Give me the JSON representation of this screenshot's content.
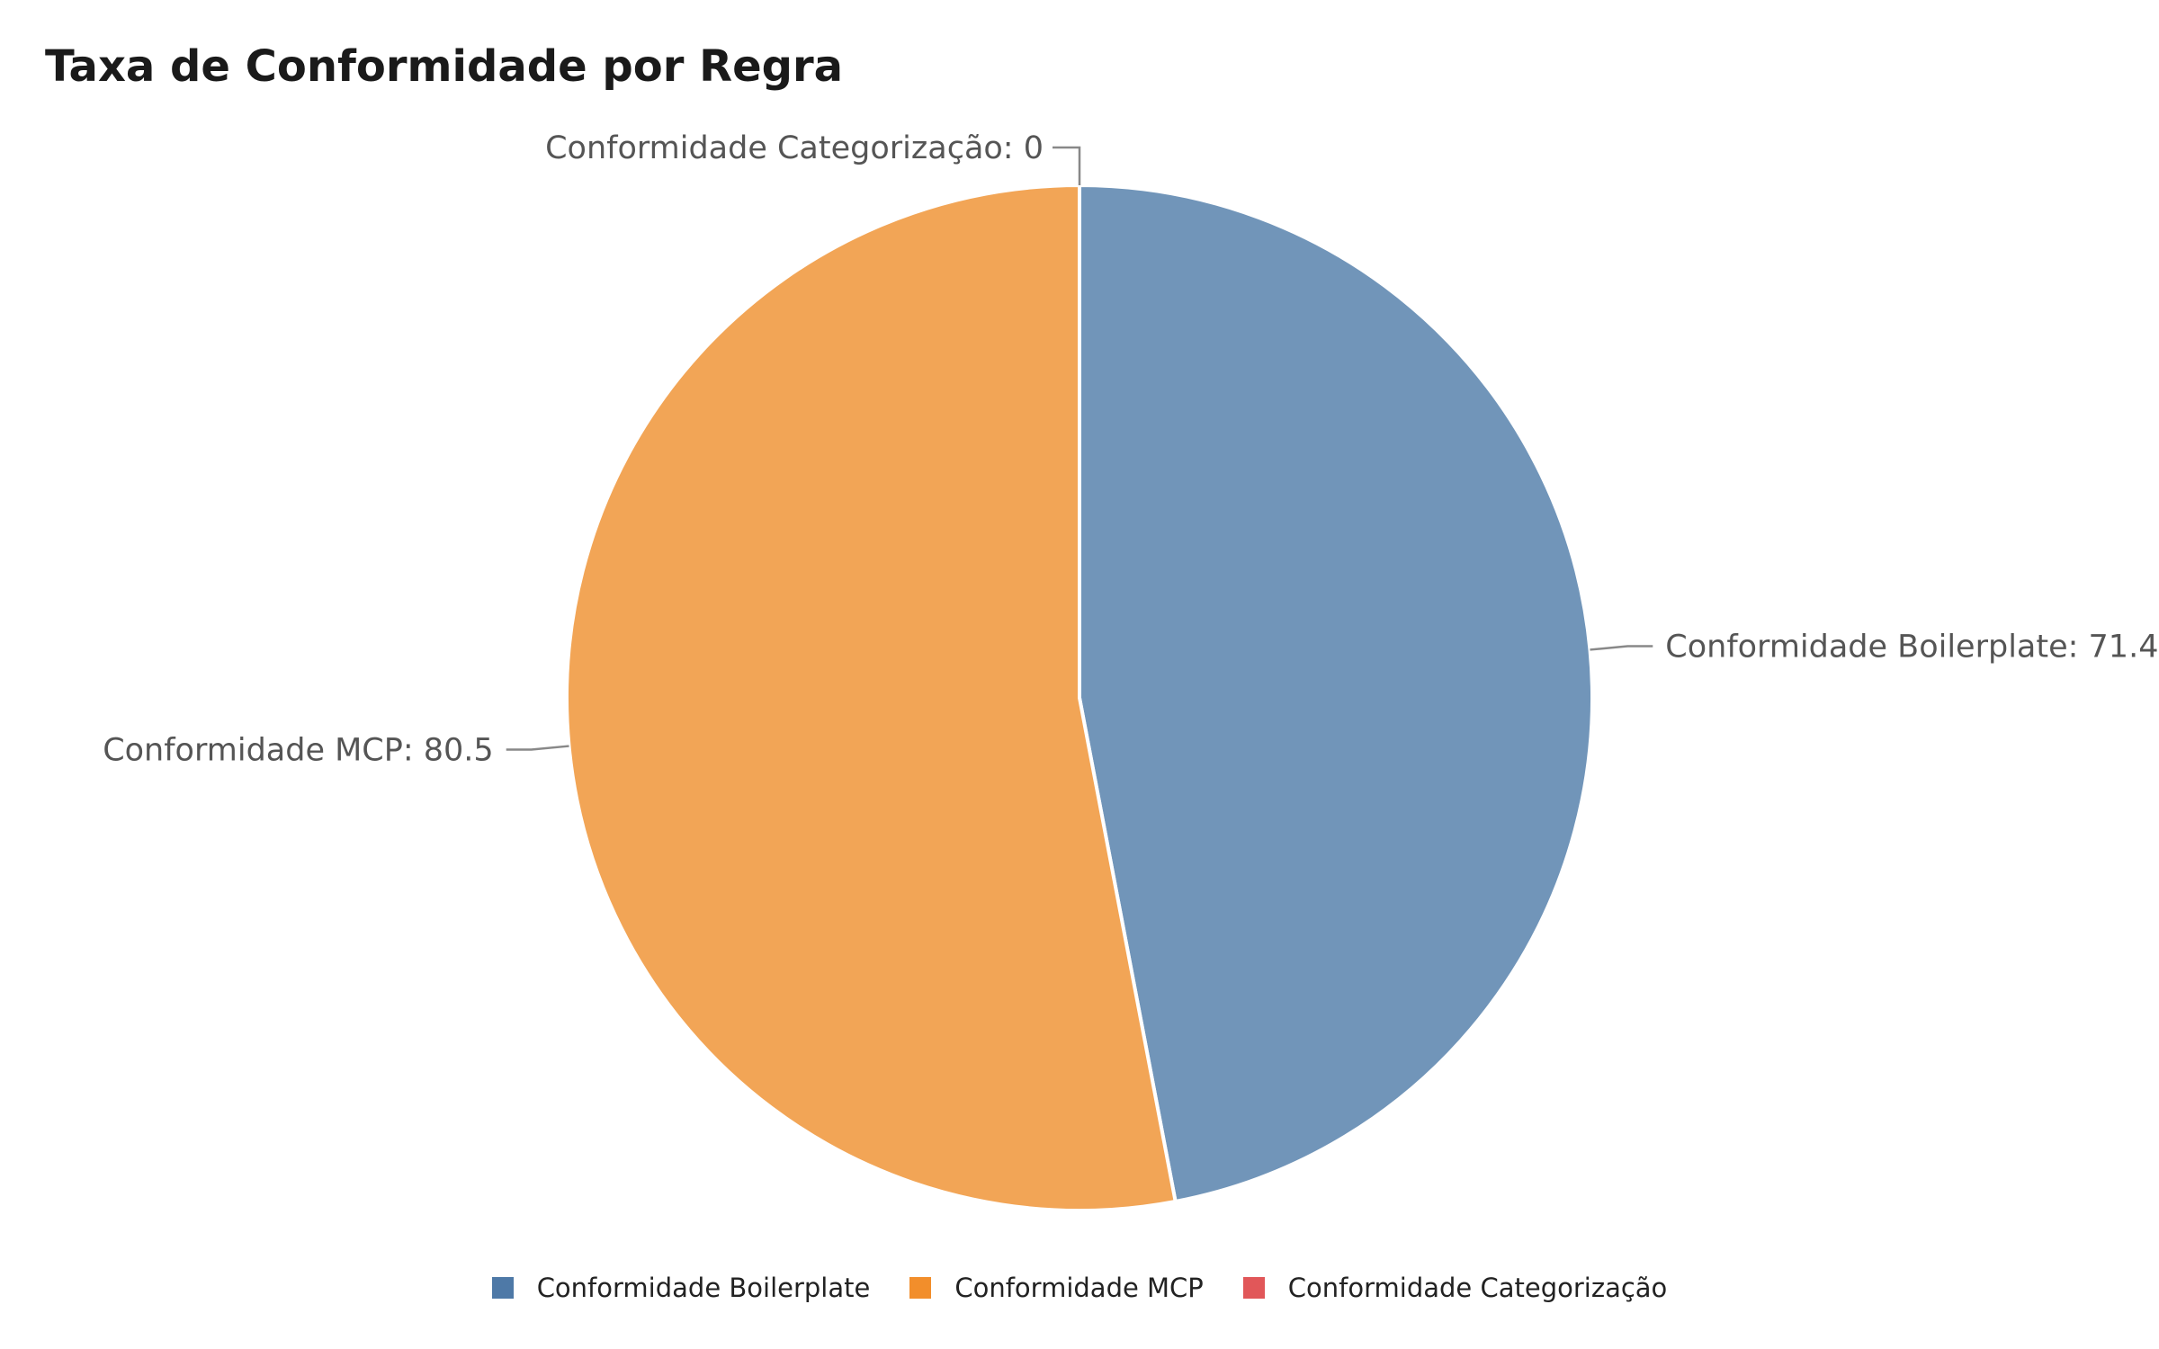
{
  "chart_data": {
    "type": "pie",
    "title": "Taxa de Conformidade por Regra",
    "legend_position": "bottom",
    "slices": [
      {
        "name": "Conformidade Boilerplate",
        "value": 71.4,
        "label": "Conformidade Boilerplate: 71.4",
        "color": "#7195b9",
        "legend_color": "#4e79a7"
      },
      {
        "name": "Conformidade MCP",
        "value": 80.5,
        "label": "Conformidade MCP: 80.5",
        "color": "#f2a556",
        "legend_color": "#f28e2b"
      },
      {
        "name": "Conformidade Categorização",
        "value": 0,
        "label": "Conformidade Categorização: 0",
        "color": "#e15759",
        "legend_color": "#e15759"
      }
    ]
  }
}
